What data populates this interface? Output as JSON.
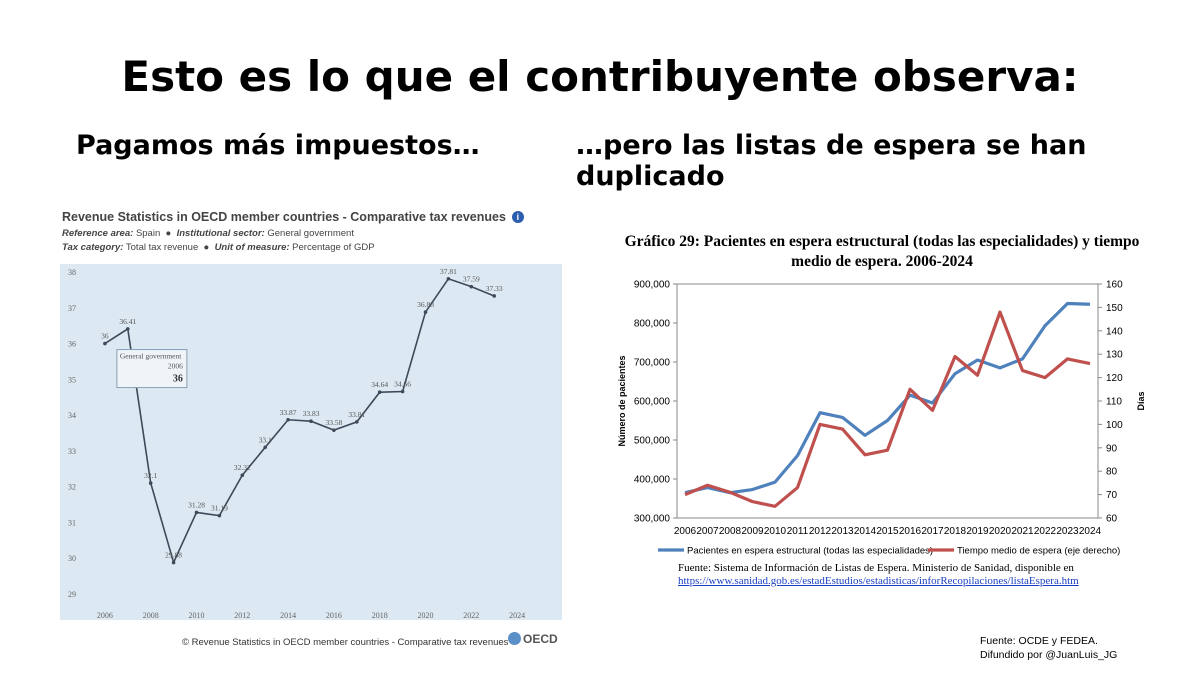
{
  "title": "Esto es lo que el contribuyente observa:",
  "subtitle_left": "Pagamos más impuestos…",
  "subtitle_right": "…pero las listas de espera se han duplicado",
  "oecd": {
    "title": "Revenue Statistics in OECD member countries - Comparative tax revenues",
    "meta1_k1": "Reference area:",
    "meta1_v1": "Spain",
    "meta1_k2": "Institutional sector:",
    "meta1_v2": "General government",
    "meta2_k1": "Tax category:",
    "meta2_v1": "Total tax revenue",
    "meta2_k2": "Unit of measure:",
    "meta2_v2": "Percentage of GDP",
    "footer": "©  Revenue Statistics in OECD member countries - Comparative tax revenues",
    "logo": "OECD",
    "tooltip": {
      "series": "General government",
      "year": "2006",
      "value": "36"
    }
  },
  "wait": {
    "title_line1": "Gráfico 29: Pacientes en espera estructural (todas las especialidades) y tiempo",
    "title_line2": "medio de espera. 2006-2024",
    "source_line1": "Fuente: Sistema de Información de Listas de Espera. Ministerio de Sanidad, disponible en",
    "source_link": "https://www.sanidad.gob.es/estadEstudios/estadisticas/inforRecopilaciones/listaEspera.htm"
  },
  "credit_line1": "Fuente: OCDE y FEDEA.",
  "credit_line2": "Difundido por @JuanLuis_JG",
  "colors": {
    "oecd_line": "#3e4a5a",
    "oecd_bg": "#dce9f2",
    "patients": "#4f81bd",
    "wait_time": "#c0504d"
  },
  "chart_data": [
    {
      "type": "line",
      "title": "Revenue Statistics in OECD member countries - Comparative tax revenues",
      "ylabel": "Percentage of GDP",
      "xlabel": "",
      "x": [
        2006,
        2007,
        2008,
        2009,
        2010,
        2011,
        2012,
        2013,
        2014,
        2015,
        2016,
        2017,
        2018,
        2019,
        2020,
        2021,
        2022,
        2023
      ],
      "values": [
        36,
        36.41,
        32.1,
        29.88,
        31.28,
        31.19,
        32.32,
        33.1,
        33.87,
        33.83,
        33.58,
        33.81,
        34.64,
        34.66,
        36.88,
        37.81,
        37.59,
        37.33
      ],
      "labels": [
        "36",
        "36.41",
        "32.1",
        "29.88",
        "31.28",
        "31.19",
        "32.32",
        "33.1",
        "33.87",
        "33.83",
        "33.58",
        "33.81",
        "34.64",
        "34.66",
        "36.88",
        "37.81",
        "37.59",
        "37.33"
      ],
      "ylim": [
        29,
        38
      ],
      "yticks": [
        "29",
        "30",
        "31",
        "32",
        "33",
        "34",
        "35",
        "36",
        "37",
        "38"
      ],
      "xlim": [
        2005,
        2025
      ],
      "xticks": [
        "2006",
        "2008",
        "2010",
        "2012",
        "2014",
        "2016",
        "2018",
        "2020",
        "2022",
        "2024"
      ],
      "grid": false
    },
    {
      "type": "line",
      "title": "Gráfico 29: Pacientes en espera estructural (todas las especialidades) y tiempo medio de espera. 2006-2024",
      "categories": [
        "2006",
        "2007",
        "2008",
        "2009",
        "2010",
        "2011",
        "2012",
        "2013",
        "2014",
        "2015",
        "2016",
        "2017",
        "2018",
        "2019",
        "2020",
        "2021",
        "2022",
        "2023",
        "2024"
      ],
      "series": [
        {
          "name": "Pacientes en espera estructural (todas las especialidades)",
          "axis": "left",
          "values": [
            365000,
            378000,
            365000,
            373000,
            392000,
            460000,
            570000,
            558000,
            512000,
            550000,
            615000,
            595000,
            670000,
            705000,
            685000,
            708000,
            793000,
            850000,
            848000
          ]
        },
        {
          "name": "Tiempo medio de espera (eje derecho)",
          "axis": "right",
          "values": [
            70,
            74,
            71,
            67,
            65,
            73,
            100,
            98,
            87,
            89,
            115,
            106,
            129,
            121,
            148,
            123,
            120,
            128,
            126
          ]
        }
      ],
      "ylabel": "Número de pacientes",
      "ylim": [
        300000,
        900000
      ],
      "yticks": [
        "300,000",
        "400,000",
        "500,000",
        "600,000",
        "700,000",
        "800,000",
        "900,000"
      ],
      "y2label": "Días",
      "y2lim": [
        60,
        160
      ],
      "y2ticks": [
        "60",
        "70",
        "80",
        "90",
        "100",
        "110",
        "120",
        "130",
        "140",
        "150",
        "160"
      ],
      "legend": "bottom",
      "grid": false
    }
  ]
}
